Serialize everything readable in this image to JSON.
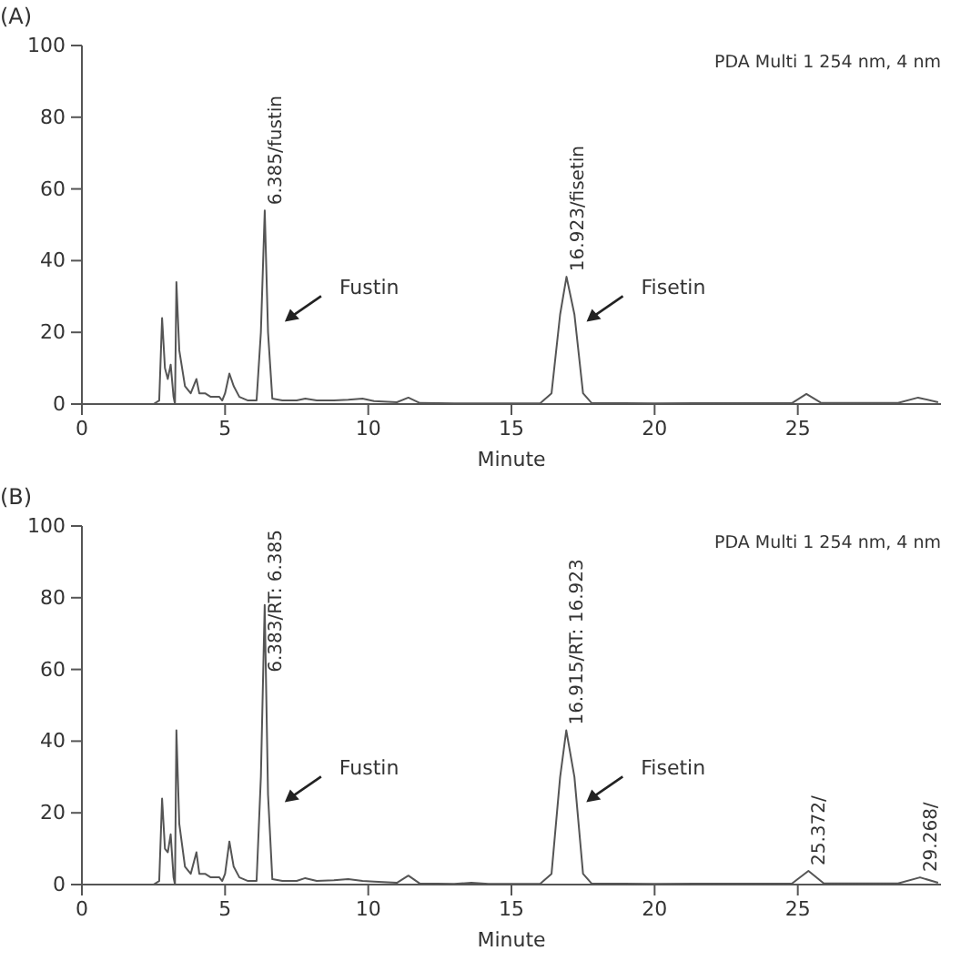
{
  "chart_data": [
    {
      "type": "line",
      "title": "(A)",
      "xlabel": "Minute",
      "xlim": [
        0,
        30
      ],
      "ylim": [
        0,
        100
      ],
      "xticks": [
        0,
        5,
        10,
        15,
        20,
        25
      ],
      "yticks": [
        0,
        20,
        40,
        60,
        80,
        100
      ],
      "grid": false,
      "marker": "none",
      "line_style": "solid",
      "annotations": [
        "PDA Multi 1 254 nm, 4 nm",
        {
          "text": "6.385/fustin",
          "x": 6.385,
          "y": 54
        },
        "Fustin",
        {
          "text": "16.923/fisetin",
          "x": 16.923,
          "y": 35.5
        },
        "Fisetin"
      ],
      "x": [
        0,
        2.5,
        2.7,
        2.8,
        2.9,
        3.0,
        3.1,
        3.2,
        3.25,
        3.3,
        3.4,
        3.6,
        3.8,
        4.0,
        4.1,
        4.3,
        4.5,
        4.8,
        4.9,
        5.0,
        5.15,
        5.3,
        5.5,
        5.8,
        6.1,
        6.25,
        6.385,
        6.5,
        6.65,
        7,
        7.5,
        7.8,
        8.2,
        8.8,
        9.3,
        9.8,
        10.2,
        11,
        11.4,
        11.8,
        13,
        16,
        16.4,
        16.7,
        16.923,
        17.2,
        17.5,
        17.8,
        20,
        24.8,
        25.3,
        25.8,
        28.5,
        29.2,
        29.9
      ],
      "series": [
        {
          "color": "#555555",
          "values": [
            0,
            0,
            1,
            24,
            10,
            7,
            11,
            2,
            0,
            34,
            15,
            5,
            3,
            7,
            3,
            3,
            2,
            2,
            1,
            3,
            8.5,
            5,
            2,
            1,
            1,
            20,
            54,
            20,
            1.5,
            1,
            1,
            1.5,
            1,
            1,
            1.2,
            1.5,
            0.8,
            0.5,
            1.8,
            0.3,
            0.2,
            0.2,
            3,
            25,
            35.5,
            25,
            3,
            0.3,
            0.2,
            0.3,
            2.8,
            0.4,
            0.3,
            1.8,
            0.5
          ]
        }
      ]
    },
    {
      "type": "line",
      "title": "(B)",
      "xlabel": "Minute",
      "xlim": [
        0,
        30
      ],
      "ylim": [
        0,
        100
      ],
      "xticks": [
        0,
        5,
        10,
        15,
        20,
        25
      ],
      "yticks": [
        0,
        20,
        40,
        60,
        80,
        100
      ],
      "grid": false,
      "marker": "none",
      "line_style": "solid",
      "annotations": [
        "PDA Multi 1 254 nm, 4 nm",
        {
          "text": "6.383/RT: 6.385",
          "x": 6.383,
          "y": 78
        },
        "Fustin",
        {
          "text": "16.915/RT: 16.923",
          "x": 16.915,
          "y": 43
        },
        "Fisetin",
        {
          "text": "25.372/",
          "x": 25.372,
          "y": 3.8
        },
        {
          "text": "29.268/",
          "x": 29.268,
          "y": 2
        }
      ],
      "x": [
        0,
        2.5,
        2.7,
        2.8,
        2.9,
        3.0,
        3.1,
        3.2,
        3.25,
        3.3,
        3.4,
        3.6,
        3.8,
        4.0,
        4.1,
        4.3,
        4.5,
        4.8,
        4.9,
        5.0,
        5.15,
        5.3,
        5.5,
        5.8,
        6.1,
        6.25,
        6.383,
        6.5,
        6.65,
        7,
        7.5,
        7.8,
        8.2,
        8.8,
        9.3,
        9.8,
        10.2,
        11,
        11.4,
        11.8,
        13,
        13.6,
        14.2,
        16,
        16.4,
        16.7,
        16.915,
        17.2,
        17.5,
        17.8,
        20,
        24.8,
        25.372,
        25.9,
        28.5,
        29.268,
        29.9
      ],
      "series": [
        {
          "color": "#555555",
          "values": [
            0,
            0,
            1,
            24,
            10,
            9,
            14,
            2,
            0,
            43,
            17,
            5,
            3,
            9,
            3,
            3,
            2,
            2,
            1,
            3,
            12,
            5,
            2,
            1,
            1,
            30,
            78,
            25,
            1.5,
            1,
            1,
            1.8,
            1,
            1.2,
            1.5,
            1,
            0.8,
            0.5,
            2.5,
            0.3,
            0.2,
            0.5,
            0.2,
            0.2,
            3,
            30,
            43,
            30,
            3,
            0.3,
            0.2,
            0.3,
            3.8,
            0.4,
            0.3,
            2,
            0.5
          ]
        }
      ]
    }
  ]
}
